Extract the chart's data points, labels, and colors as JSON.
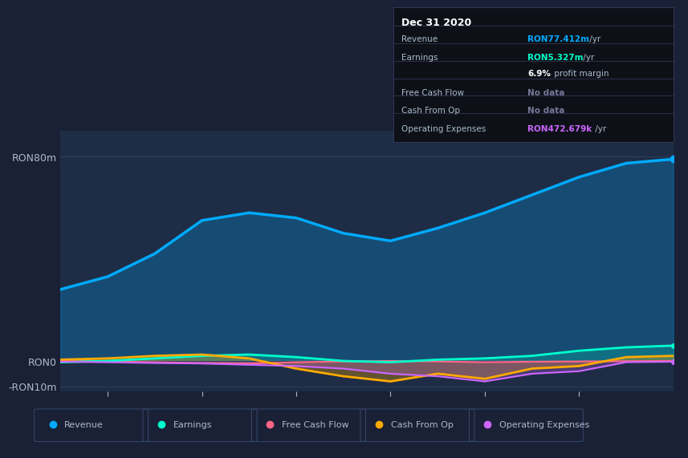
{
  "background_color": "#1a2035",
  "plot_bg_color": "#1e2d45",
  "grid_color": "#2a3f5f",
  "text_color": "#aabbcc",
  "title_color": "#ffffff",
  "x_years": [
    2014.5,
    2015.0,
    2015.5,
    2016.0,
    2016.5,
    2017.0,
    2017.5,
    2018.0,
    2018.5,
    2019.0,
    2019.5,
    2020.0,
    2020.5,
    2021.0
  ],
  "revenue": [
    28000000,
    33000000,
    42000000,
    55000000,
    58000000,
    56000000,
    50000000,
    47000000,
    52000000,
    58000000,
    65000000,
    72000000,
    77412000,
    79000000
  ],
  "earnings": [
    -500000,
    0,
    1000000,
    2000000,
    2500000,
    1500000,
    0,
    -500000,
    500000,
    1000000,
    2000000,
    4000000,
    5327000,
    6000000
  ],
  "free_cash_flow": [
    0,
    -200000,
    -500000,
    -800000,
    -1000000,
    -500000,
    -200000,
    0,
    -200000,
    -500000,
    -300000,
    -200000,
    -100000,
    0
  ],
  "cash_from_op": [
    500000,
    1000000,
    2000000,
    2500000,
    1000000,
    -3000000,
    -6000000,
    -8000000,
    -5000000,
    -7000000,
    -3000000,
    -2000000,
    1500000,
    2000000
  ],
  "operating_expenses": [
    -300000,
    -500000,
    -800000,
    -1000000,
    -1500000,
    -2000000,
    -3000000,
    -5000000,
    -6000000,
    -8000000,
    -5000000,
    -4000000,
    -472679,
    -300000
  ],
  "revenue_color": "#00aaff",
  "earnings_color": "#00ffcc",
  "free_cash_flow_color": "#ff6688",
  "cash_from_op_color": "#ffaa00",
  "operating_expenses_color": "#cc66ff",
  "ylim_min": -12000000,
  "ylim_max": 90000000,
  "yticks": [
    -10000000,
    0,
    80000000
  ],
  "ytick_labels": [
    "-RON10m",
    "RON0",
    "RON80m"
  ],
  "xticks": [
    2015,
    2016,
    2017,
    2018,
    2019,
    2020
  ],
  "legend_items": [
    "Revenue",
    "Earnings",
    "Free Cash Flow",
    "Cash From Op",
    "Operating Expenses"
  ],
  "legend_colors": [
    "#00aaff",
    "#00ffcc",
    "#ff6688",
    "#ffaa00",
    "#cc66ff"
  ],
  "info_box_title": "Dec 31 2020",
  "info_rows": [
    {
      "label": "Revenue",
      "value_colored": "RON77.412m",
      "value_rest": " /yr",
      "value_color": "#00aaff"
    },
    {
      "label": "Earnings",
      "value_colored": "RON5.327m",
      "value_rest": " /yr",
      "value_color": "#00ffcc"
    },
    {
      "label": "",
      "value_colored": "6.9%",
      "value_rest": " profit margin",
      "value_color": "#ffffff"
    },
    {
      "label": "Free Cash Flow",
      "value_colored": "No data",
      "value_rest": "",
      "value_color": "#777799"
    },
    {
      "label": "Cash From Op",
      "value_colored": "No data",
      "value_rest": "",
      "value_color": "#777799"
    },
    {
      "label": "Operating Expenses",
      "value_colored": "RON472.679k",
      "value_rest": " /yr",
      "value_color": "#cc66ff"
    }
  ]
}
